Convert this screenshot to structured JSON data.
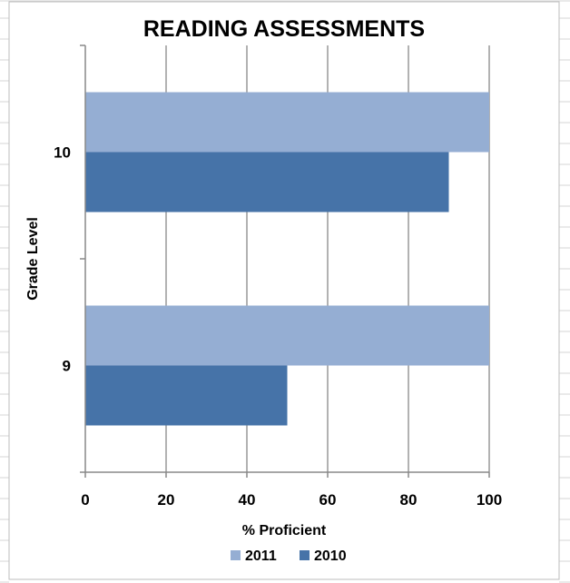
{
  "chart_data": {
    "type": "bar",
    "orientation": "horizontal",
    "title": "READING ASSESSMENTS",
    "xlabel": "% Proficient",
    "ylabel": "Grade Level",
    "categories": [
      "10",
      "9"
    ],
    "series": [
      {
        "name": "2011",
        "values": [
          100,
          100
        ],
        "color": "#95aed3"
      },
      {
        "name": "2010",
        "values": [
          90,
          50
        ],
        "color": "#4673a8"
      }
    ],
    "xlim": [
      0,
      100
    ],
    "xticks": [
      0,
      20,
      40,
      60,
      80,
      100
    ],
    "grid": "vertical",
    "legend_position": "bottom"
  },
  "colors": {
    "grid": "#999999",
    "axis": "#888888",
    "background": "#ffffff",
    "spreadsheet_lines": "#d6d6d6"
  }
}
